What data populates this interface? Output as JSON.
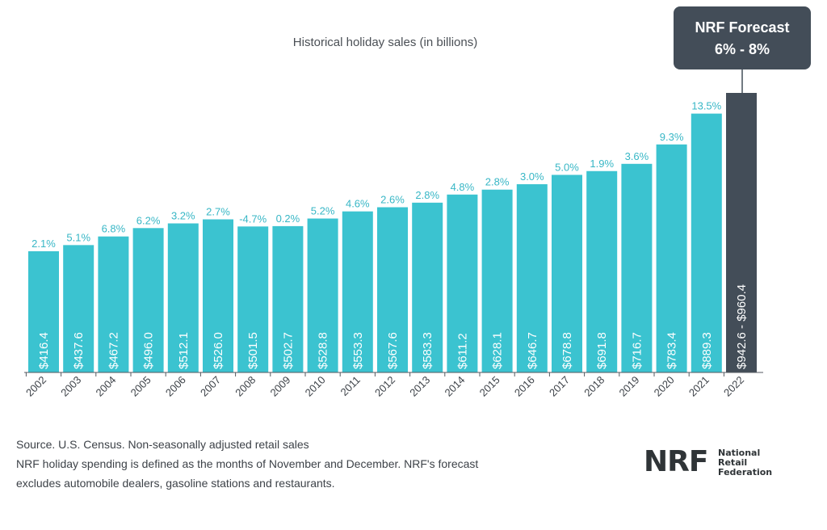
{
  "chart_data": {
    "type": "bar",
    "title": "Historical holiday sales (in billions)",
    "categories": [
      "2002",
      "2003",
      "2004",
      "2005",
      "2006",
      "2007",
      "2008",
      "2009",
      "2010",
      "2011",
      "2012",
      "2013",
      "2014",
      "2015",
      "2016",
      "2017",
      "2018",
      "2019",
      "2020",
      "2021",
      "2022"
    ],
    "values": [
      416.4,
      437.6,
      467.2,
      496.0,
      512.1,
      526.0,
      501.5,
      502.7,
      528.8,
      553.3,
      567.6,
      583.3,
      611.2,
      628.1,
      646.7,
      678.8,
      691.8,
      716.7,
      783.4,
      889.3,
      960.4
    ],
    "value_labels": [
      "$416.4",
      "$437.6",
      "$467.2",
      "$496.0",
      "$512.1",
      "$526.0",
      "$501.5",
      "$502.7",
      "$528.8",
      "$553.3",
      "$567.6",
      "$583.3",
      "$611.2",
      "$628.1",
      "$646.7",
      "$678.8",
      "$691.8",
      "$716.7",
      "$783.4",
      "$889.3",
      "$942.6 - $960.4"
    ],
    "growth_labels": [
      "2.1%",
      "5.1%",
      "6.8%",
      "6.2%",
      "3.2%",
      "2.7%",
      "-4.7%",
      "0.2%",
      "5.2%",
      "4.6%",
      "2.6%",
      "2.8%",
      "4.8%",
      "2.8%",
      "3.0%",
      "5.0%",
      "1.9%",
      "3.6%",
      "9.3%",
      "13.5%",
      ""
    ],
    "forecast_range": [
      942.6,
      960.4
    ],
    "forecast_index": 20,
    "ylim": [
      0,
      960.4
    ],
    "grid": false,
    "colors": {
      "bar": "#3bc3d0",
      "forecast_bar": "#434d58",
      "growth_label": "#38b7c6",
      "bar_label": "#ffffff",
      "axis": "#555a60"
    }
  },
  "callout": {
    "line1": "NRF Forecast",
    "line2": "6% - 8%"
  },
  "footnotes": {
    "line1": "Source. U.S. Census. Non-seasonally adjusted retail sales",
    "line2": "NRF holiday spending is defined as the months of November and December. NRF's forecast",
    "line3": "excludes automobile dealers, gasoline stations and restaurants."
  },
  "logo": {
    "mark": "NRF",
    "line1": "National",
    "line2": "Retail",
    "line3": "Federation"
  }
}
